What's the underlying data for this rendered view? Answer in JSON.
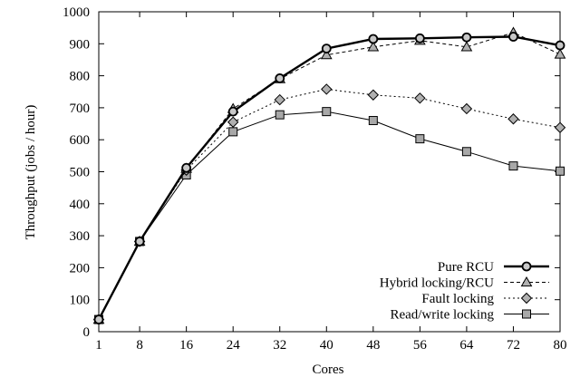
{
  "chart_data": {
    "type": "line",
    "xlabel": "Cores",
    "ylabel": "Throughput (jobs / hour)",
    "x": [
      1,
      8,
      16,
      24,
      32,
      40,
      48,
      56,
      64,
      72,
      80
    ],
    "xlim": [
      1,
      80
    ],
    "ylim": [
      0,
      1000
    ],
    "x_ticks": [
      "1",
      "8",
      "16",
      "24",
      "32",
      "40",
      "48",
      "56",
      "64",
      "72",
      "80"
    ],
    "y_ticks": [
      "0",
      "100",
      "200",
      "300",
      "400",
      "500",
      "600",
      "700",
      "800",
      "900",
      "1000"
    ],
    "grid": false,
    "legend_position": "bottom-right",
    "series": [
      {
        "name": "Pure RCU",
        "values": [
          38,
          282,
          512,
          688,
          792,
          885,
          915,
          917,
          920,
          922,
          895
        ],
        "color": "#000000",
        "line": "solid-thick",
        "marker": "circle",
        "marker_fill": "#c8c8c8"
      },
      {
        "name": "Hybrid locking/RCU",
        "values": [
          38,
          282,
          510,
          697,
          790,
          865,
          890,
          910,
          890,
          935,
          867
        ],
        "color": "#000000",
        "line": "dashed",
        "marker": "triangle",
        "marker_fill": "#b0b0b0"
      },
      {
        "name": "Fault locking",
        "values": [
          38,
          282,
          505,
          655,
          725,
          758,
          740,
          730,
          697,
          665,
          638
        ],
        "color": "#000000",
        "line": "dotted",
        "marker": "diamond",
        "marker_fill": "#b0b0b0"
      },
      {
        "name": "Read/write locking",
        "values": [
          38,
          282,
          490,
          625,
          678,
          688,
          660,
          603,
          563,
          518,
          502
        ],
        "color": "#000000",
        "line": "solid-thin",
        "marker": "square",
        "marker_fill": "#a8a8a8"
      }
    ]
  }
}
